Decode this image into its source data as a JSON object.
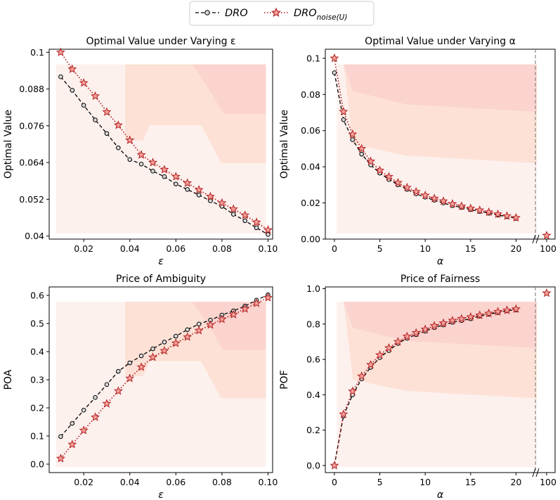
{
  "legend": {
    "entries": [
      {
        "name": "DRO",
        "label_main": "DRO",
        "label_sub": "",
        "color": "#000000",
        "marker": "circle",
        "linestyle": "dashed"
      },
      {
        "name": "DRO_noise(U)",
        "label_main": "DRO",
        "label_sub": "noise(U)",
        "color": "#b22222",
        "marker": "star",
        "linestyle": "dotted"
      }
    ]
  },
  "colors": {
    "bg_light": "#fdf1ee",
    "bg_mid": "#fde1d6",
    "bg_dark": "#fbd3cf",
    "dro": "#000000",
    "noise": "#b22222",
    "star_fill": "#f4a19c",
    "break_line": "#888888"
  },
  "chart_data": [
    {
      "id": "eps_value",
      "type": "line",
      "title": "Optimal Value under Varying ε",
      "xlabel": "ε",
      "ylabel": "Optimal Value",
      "xlim": [
        0.005,
        0.102
      ],
      "ylim": [
        0.039,
        0.101
      ],
      "xticks": [
        0.02,
        0.04,
        0.06,
        0.08,
        0.1
      ],
      "xticklabels": [
        "0.02",
        "0.04",
        "0.06",
        "0.08",
        "0.10"
      ],
      "yticks": [
        0.04,
        0.052,
        0.064,
        0.076,
        0.088,
        0.1
      ],
      "yticklabels": [
        "0.04",
        "0.052",
        "0.064",
        "0.076",
        "0.088",
        "0.1"
      ],
      "x": [
        0.01,
        0.015,
        0.02,
        0.025,
        0.03,
        0.035,
        0.04,
        0.045,
        0.05,
        0.055,
        0.06,
        0.065,
        0.07,
        0.075,
        0.08,
        0.085,
        0.09,
        0.095,
        0.1
      ],
      "series": [
        {
          "name": "DRO",
          "values": [
            0.092,
            0.0876,
            0.0827,
            0.0779,
            0.0735,
            0.0688,
            0.065,
            0.0635,
            0.0612,
            0.0594,
            0.057,
            0.0552,
            0.0534,
            0.0515,
            0.0497,
            0.0471,
            0.045,
            0.0427,
            0.0405
          ]
        },
        {
          "name": "DRO_noise(U)",
          "values": [
            0.1,
            0.0945,
            0.09,
            0.0857,
            0.0805,
            0.0762,
            0.0713,
            0.0665,
            0.064,
            0.0617,
            0.0594,
            0.0573,
            0.0551,
            0.0529,
            0.0508,
            0.0488,
            0.0468,
            0.0445,
            0.042
          ]
        }
      ]
    },
    {
      "id": "alpha_value",
      "type": "line",
      "title": "Optimal Value under Varying α",
      "xlabel": "α",
      "ylabel": "Optimal Value",
      "xlim": [
        -1,
        24.3
      ],
      "ylim": [
        0.0,
        0.105
      ],
      "xticks": [
        0,
        5,
        10,
        15,
        20
      ],
      "xticklabels": [
        "0",
        "5",
        "10",
        "15",
        "20"
      ],
      "extra_xtick_label": "100",
      "yticks": [
        0.0,
        0.02,
        0.04,
        0.06,
        0.08,
        0.1
      ],
      "yticklabels": [
        "0.00",
        "0.02",
        "0.04",
        "0.06",
        "0.08",
        "0.1"
      ],
      "x": [
        0,
        1,
        2,
        3,
        4,
        5,
        6,
        7,
        8,
        9,
        10,
        11,
        12,
        13,
        14,
        15,
        16,
        17,
        18,
        19,
        20
      ],
      "series": [
        {
          "name": "DRO",
          "values": [
            0.092,
            0.066,
            0.055,
            0.047,
            0.041,
            0.0365,
            0.033,
            0.03,
            0.0275,
            0.025,
            0.0232,
            0.0215,
            0.02,
            0.0185,
            0.0175,
            0.0163,
            0.0153,
            0.0143,
            0.0133,
            0.0124,
            0.0115
          ]
        },
        {
          "name": "DRO_noise(U)",
          "values": [
            0.1,
            0.0705,
            0.058,
            0.05,
            0.043,
            0.038,
            0.0345,
            0.0312,
            0.0285,
            0.0262,
            0.0242,
            0.0225,
            0.021,
            0.0195,
            0.0182,
            0.017,
            0.016,
            0.0149,
            0.0138,
            0.0128,
            0.0118
          ]
        }
      ],
      "outlier": {
        "name": "DRO_noise(U)",
        "x_label": "100",
        "value": 0.002
      }
    },
    {
      "id": "poa",
      "type": "line",
      "title": "Price of Ambiguity",
      "xlabel": "ε",
      "ylabel": "POA",
      "xlim": [
        0.005,
        0.102
      ],
      "ylim": [
        -0.03,
        0.63
      ],
      "xticks": [
        0.02,
        0.04,
        0.06,
        0.08,
        0.1
      ],
      "xticklabels": [
        "0.02",
        "0.04",
        "0.06",
        "0.08",
        "0.10"
      ],
      "yticks": [
        0.0,
        0.1,
        0.2,
        0.3,
        0.4,
        0.5,
        0.6
      ],
      "yticklabels": [
        "0.0",
        "0.1",
        "0.2",
        "0.3",
        "0.4",
        "0.5",
        "0.6"
      ],
      "x": [
        0.01,
        0.015,
        0.02,
        0.025,
        0.03,
        0.035,
        0.04,
        0.045,
        0.05,
        0.055,
        0.06,
        0.065,
        0.07,
        0.075,
        0.08,
        0.085,
        0.09,
        0.095,
        0.1
      ],
      "series": [
        {
          "name": "DRO",
          "values": [
            0.098,
            0.145,
            0.192,
            0.237,
            0.283,
            0.33,
            0.36,
            0.385,
            0.41,
            0.434,
            0.455,
            0.478,
            0.498,
            0.512,
            0.53,
            0.545,
            0.562,
            0.583,
            0.602
          ]
        },
        {
          "name": "DRO_noise(U)",
          "values": [
            0.02,
            0.07,
            0.12,
            0.167,
            0.215,
            0.26,
            0.305,
            0.345,
            0.38,
            0.403,
            0.43,
            0.452,
            0.475,
            0.495,
            0.515,
            0.532,
            0.552,
            0.572,
            0.592
          ]
        }
      ]
    },
    {
      "id": "pof",
      "type": "line",
      "title": "Price of Fairness",
      "xlabel": "α",
      "ylabel": "POF",
      "xlim": [
        -1,
        24.3
      ],
      "ylim": [
        -0.04,
        1.01
      ],
      "xticks": [
        0,
        5,
        10,
        15,
        20
      ],
      "xticklabels": [
        "0",
        "5",
        "10",
        "15",
        "20"
      ],
      "extra_xtick_label": "100",
      "yticks": [
        0.0,
        0.2,
        0.4,
        0.6,
        0.8,
        1.0
      ],
      "yticklabels": [
        "0.0",
        "0.2",
        "0.4",
        "0.6",
        "0.8",
        "1.0"
      ],
      "x": [
        0,
        1,
        2,
        3,
        4,
        5,
        6,
        7,
        8,
        9,
        10,
        11,
        12,
        13,
        14,
        15,
        16,
        17,
        18,
        19,
        20
      ],
      "series": [
        {
          "name": "DRO",
          "values": [
            0.0,
            0.28,
            0.4,
            0.49,
            0.555,
            0.61,
            0.65,
            0.69,
            0.72,
            0.74,
            0.76,
            0.78,
            0.795,
            0.81,
            0.82,
            0.83,
            0.845,
            0.855,
            0.865,
            0.875,
            0.88
          ]
        },
        {
          "name": "DRO_noise(U)",
          "values": [
            0.0,
            0.29,
            0.42,
            0.505,
            0.57,
            0.625,
            0.665,
            0.7,
            0.73,
            0.75,
            0.77,
            0.79,
            0.805,
            0.82,
            0.83,
            0.84,
            0.85,
            0.86,
            0.87,
            0.878,
            0.885
          ]
        }
      ],
      "outlier": {
        "name": "DRO_noise(U)",
        "x_label": "100",
        "value": 0.975
      }
    }
  ]
}
